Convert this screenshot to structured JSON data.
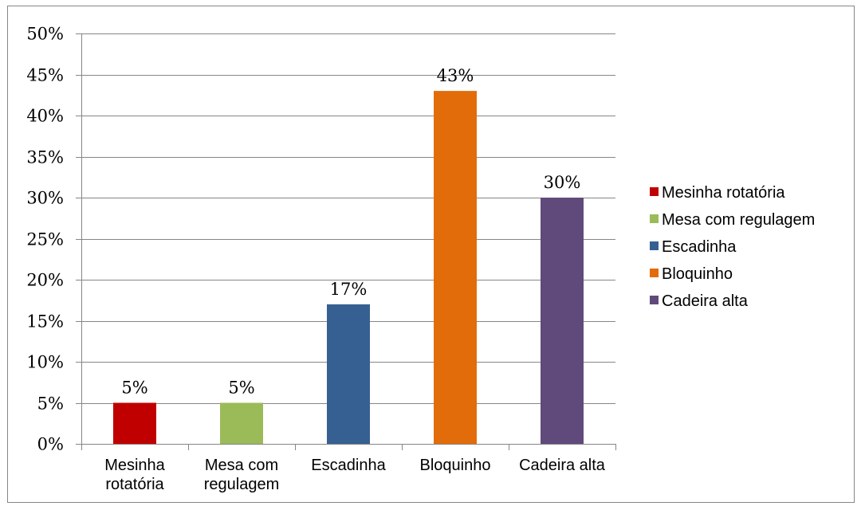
{
  "chart_data": {
    "type": "bar",
    "categories": [
      [
        "Mesinha",
        "rotatória"
      ],
      [
        "Mesa com",
        "regulagem"
      ],
      [
        "Escadinha"
      ],
      [
        "Bloquinho"
      ],
      [
        "Cadeira alta"
      ]
    ],
    "values": [
      5,
      5,
      17,
      43,
      30
    ],
    "data_labels": [
      "5%",
      "5%",
      "17%",
      "43%",
      "30%"
    ],
    "colors": [
      "#c00000",
      "#9bbb59",
      "#376092",
      "#e36c0a",
      "#604a7b"
    ],
    "ylim": [
      0,
      50
    ],
    "y_ticks": [
      {
        "value": 0,
        "label": "0%"
      },
      {
        "value": 5,
        "label": "5%"
      },
      {
        "value": 10,
        "label": "10%"
      },
      {
        "value": 15,
        "label": "15%"
      },
      {
        "value": 20,
        "label": "20%"
      },
      {
        "value": 25,
        "label": "25%"
      },
      {
        "value": 30,
        "label": "30%"
      },
      {
        "value": 35,
        "label": "35%"
      },
      {
        "value": 40,
        "label": "40%"
      },
      {
        "value": 45,
        "label": "45%"
      },
      {
        "value": 50,
        "label": "50%"
      }
    ],
    "grid": true,
    "legend": {
      "position": "right",
      "entries": [
        "Mesinha rotatória",
        "Mesa com regulagem",
        "Escadinha",
        "Bloquinho",
        "Cadeira alta"
      ]
    },
    "title": "",
    "xlabel": "",
    "ylabel": ""
  }
}
